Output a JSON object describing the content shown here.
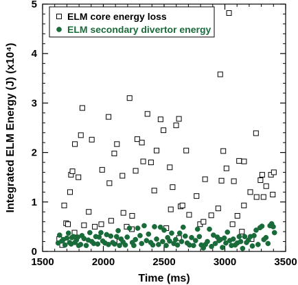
{
  "chart_data": {
    "type": "scatter",
    "title": "",
    "xlabel": "Time (ms)",
    "ylabel": "Integrated ELM Energy (J) (x10⁴)",
    "xlim": [
      1500,
      3500
    ],
    "ylim": [
      0,
      5
    ],
    "x_ticks": [
      1500,
      2000,
      2500,
      3000,
      3500
    ],
    "y_ticks": [
      0,
      1,
      2,
      3,
      4,
      5
    ],
    "grid": false,
    "legend_position": "top-left",
    "series": [
      {
        "name": "ELM core energy loss",
        "marker": "open-square",
        "color": "#000000",
        "points": [
          [
            1637,
            0.25
          ],
          [
            1661,
            0.13
          ],
          [
            1678,
            0.93
          ],
          [
            1694,
            0.57
          ],
          [
            1709,
            0.55
          ],
          [
            1726,
            1.2
          ],
          [
            1734,
            1.55
          ],
          [
            1746,
            1.62
          ],
          [
            1763,
            0.38
          ],
          [
            1766,
            2.17
          ],
          [
            1795,
            1.5
          ],
          [
            1815,
            2.35
          ],
          [
            1827,
            2.9
          ],
          [
            1841,
            0.53
          ],
          [
            1880,
            0.8
          ],
          [
            1905,
            2.26
          ],
          [
            1930,
            0.5
          ],
          [
            1983,
            0.55
          ],
          [
            1990,
            1.65
          ],
          [
            2043,
            2.72
          ],
          [
            2050,
            1.38
          ],
          [
            2064,
            0.62
          ],
          [
            2090,
            1.98
          ],
          [
            2112,
            2.17
          ],
          [
            2132,
            0.2
          ],
          [
            2157,
            1.53
          ],
          [
            2165,
            0.78
          ],
          [
            2192,
            0.5
          ],
          [
            2216,
            3.1
          ],
          [
            2235,
            0.45
          ],
          [
            2237,
            0.72
          ],
          [
            2266,
            1.63
          ],
          [
            2279,
            2.27
          ],
          [
            2317,
            2.2
          ],
          [
            2328,
            1.82
          ],
          [
            2363,
            2.78
          ],
          [
            2392,
            1.8
          ],
          [
            2419,
            1.23
          ],
          [
            2438,
            2.04
          ],
          [
            2471,
            2.67
          ],
          [
            2495,
            2.45
          ],
          [
            2518,
            0.47
          ],
          [
            2547,
            1.7
          ],
          [
            2555,
            0.85
          ],
          [
            2570,
            1.3
          ],
          [
            2599,
            2.55
          ],
          [
            2623,
            0.27
          ],
          [
            2622,
            2.68
          ],
          [
            2636,
            0.91
          ],
          [
            2651,
            0.93
          ],
          [
            2682,
            2.04
          ],
          [
            2706,
            0.74
          ],
          [
            2767,
            1.12
          ],
          [
            2796,
            0.55
          ],
          [
            2824,
            0.6
          ],
          [
            2837,
            1.46
          ],
          [
            2888,
            0.73
          ],
          [
            2945,
            0.87
          ],
          [
            2962,
            3.58
          ],
          [
            2972,
            1.43
          ],
          [
            2987,
            2.03
          ],
          [
            3013,
            1.68
          ],
          [
            3034,
            4.82
          ],
          [
            3063,
            0.55
          ],
          [
            3074,
            1.42
          ],
          [
            3103,
            0.72
          ],
          [
            3117,
            1.83
          ],
          [
            3140,
            0.4
          ],
          [
            3157,
            0.93
          ],
          [
            3158,
            1.82
          ],
          [
            3209,
            1.2
          ],
          [
            3220,
            0.25
          ],
          [
            3256,
            2.39
          ],
          [
            3261,
            1.1
          ],
          [
            3293,
            1.44
          ],
          [
            3307,
            1.55
          ],
          [
            3318,
            1.1
          ],
          [
            3340,
            1.32
          ],
          [
            3379,
            1.55
          ],
          [
            3394,
            1.15
          ],
          [
            3403,
            1.6
          ]
        ]
      },
      {
        "name": "ELM secondary divertor energy",
        "marker": "filled-circle",
        "color": "#1a6b3a",
        "points": [
          [
            1628,
            0.17
          ],
          [
            1640,
            0.33
          ],
          [
            1658,
            0.21
          ],
          [
            1671,
            0.24
          ],
          [
            1685,
            0.13
          ],
          [
            1700,
            0.27
          ],
          [
            1713,
            0.37
          ],
          [
            1722,
            0.18
          ],
          [
            1735,
            0.15
          ],
          [
            1741,
            0.28
          ],
          [
            1754,
            0.3
          ],
          [
            1766,
            0.18
          ],
          [
            1779,
            0.23
          ],
          [
            1790,
            0.29
          ],
          [
            1797,
            0.12
          ],
          [
            1813,
            0.14
          ],
          [
            1824,
            0.32
          ],
          [
            1841,
            0.26
          ],
          [
            1859,
            0.12
          ],
          [
            1876,
            0.23
          ],
          [
            1889,
            0.38
          ],
          [
            1905,
            0.2
          ],
          [
            1921,
            0.16
          ],
          [
            1938,
            0.3
          ],
          [
            1954,
            0.15
          ],
          [
            1965,
            0.29
          ],
          [
            1980,
            0.38
          ],
          [
            1995,
            0.21
          ],
          [
            2014,
            0.17
          ],
          [
            2027,
            0.34
          ],
          [
            2042,
            0.14
          ],
          [
            2061,
            0.31
          ],
          [
            2077,
            0.18
          ],
          [
            2092,
            0.15
          ],
          [
            2109,
            0.3
          ],
          [
            2122,
            0.42
          ],
          [
            2133,
            0.12
          ],
          [
            2146,
            0.25
          ],
          [
            2162,
            0.19
          ],
          [
            2181,
            0.13
          ],
          [
            2196,
            0.29
          ],
          [
            2215,
            0.47
          ],
          [
            2238,
            0.18
          ],
          [
            2251,
            0.12
          ],
          [
            2264,
            0.24
          ],
          [
            2283,
            0.47
          ],
          [
            2302,
            0.32
          ],
          [
            2315,
            0.16
          ],
          [
            2336,
            0.52
          ],
          [
            2355,
            0.22
          ],
          [
            2372,
            0.35
          ],
          [
            2390,
            0.18
          ],
          [
            2407,
            0.13
          ],
          [
            2421,
            0.5
          ],
          [
            2438,
            0.25
          ],
          [
            2454,
            0.14
          ],
          [
            2470,
            0.49
          ],
          [
            2488,
            0.2
          ],
          [
            2500,
            0.43
          ],
          [
            2517,
            0.12
          ],
          [
            2529,
            0.28
          ],
          [
            2545,
            0.21
          ],
          [
            2562,
            0.37
          ],
          [
            2580,
            0.16
          ],
          [
            2595,
            0.24
          ],
          [
            2610,
            0.13
          ],
          [
            2628,
            0.37
          ],
          [
            2644,
            0.2
          ],
          [
            2657,
            0.49
          ],
          [
            2674,
            0.31
          ],
          [
            2690,
            0.17
          ],
          [
            2709,
            0.13
          ],
          [
            2726,
            0.28
          ],
          [
            2742,
            0.12
          ],
          [
            2759,
            0.22
          ],
          [
            2775,
            0.45
          ],
          [
            2790,
            0.3
          ],
          [
            2806,
            0.13
          ],
          [
            2823,
            0.07
          ],
          [
            2840,
            0.14
          ],
          [
            2856,
            0.2
          ],
          [
            2873,
            0.45
          ],
          [
            2890,
            0.1
          ],
          [
            2906,
            0.33
          ],
          [
            2921,
            0.16
          ],
          [
            2938,
            0.29
          ],
          [
            2952,
            0.22
          ],
          [
            2964,
            0.24
          ],
          [
            2980,
            0.08
          ],
          [
            2995,
            0.27
          ],
          [
            3008,
            0.17
          ],
          [
            3021,
            0.39
          ],
          [
            3040,
            0.22
          ],
          [
            3054,
            0.12
          ],
          [
            3069,
            0.25
          ],
          [
            3085,
            0.13
          ],
          [
            3102,
            0.17
          ],
          [
            3118,
            0.3
          ],
          [
            3130,
            0.2
          ],
          [
            3146,
            0.06
          ],
          [
            3163,
            0.3
          ],
          [
            3178,
            0.18
          ],
          [
            3194,
            0.23
          ],
          [
            3210,
            0.3
          ],
          [
            3226,
            0.11
          ],
          [
            3240,
            0.32
          ],
          [
            3257,
            0.43
          ],
          [
            3273,
            0.14
          ],
          [
            3289,
            0.48
          ],
          [
            3305,
            0.51
          ],
          [
            3321,
            0.24
          ],
          [
            3338,
            0.28
          ],
          [
            3355,
            0.16
          ],
          [
            3371,
            0.52
          ],
          [
            3385,
            0.56
          ],
          [
            3398,
            0.5
          ],
          [
            3408,
            0.38
          ]
        ]
      }
    ]
  }
}
